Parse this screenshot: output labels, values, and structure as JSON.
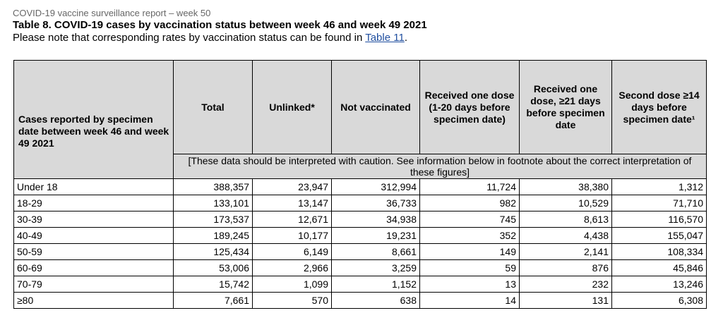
{
  "report_line": "COVID-19 vaccine surveillance report – week 50",
  "table_title": "Table 8. COVID-19 cases by vaccination status between week 46 and week 49 2021",
  "note": {
    "before": "Please note that corresponding rates by vaccination status can be found in ",
    "link": "Table 11",
    "after": "."
  },
  "headers": {
    "rowhead": "Cases reported by specimen date between week 46 and week 49 2021",
    "total": "Total",
    "unlinked": "Unlinked*",
    "not_vaccinated": "Not vaccinated",
    "one_dose_1_20": "Received one dose (1-20 days before specimen date)",
    "one_dose_21": "Received one dose, ≥21 days before specimen date",
    "second_dose": "Second dose ≥14 days before specimen date¹"
  },
  "caution": "[These data should be interpreted with caution. See information below in footnote about the correct interpretation of these figures]",
  "rows": [
    {
      "age": "Under 18",
      "total": "388,357",
      "unlinked": "23,947",
      "not_vaccinated": "312,994",
      "one_dose_1_20": "11,724",
      "one_dose_21": "38,380",
      "second_dose": "1,312"
    },
    {
      "age": "18-29",
      "total": "133,101",
      "unlinked": "13,147",
      "not_vaccinated": "36,733",
      "one_dose_1_20": "982",
      "one_dose_21": "10,529",
      "second_dose": "71,710"
    },
    {
      "age": "30-39",
      "total": "173,537",
      "unlinked": "12,671",
      "not_vaccinated": "34,938",
      "one_dose_1_20": "745",
      "one_dose_21": "8,613",
      "second_dose": "116,570"
    },
    {
      "age": "40-49",
      "total": "189,245",
      "unlinked": "10,177",
      "not_vaccinated": "19,231",
      "one_dose_1_20": "352",
      "one_dose_21": "4,438",
      "second_dose": "155,047"
    },
    {
      "age": "50-59",
      "total": "125,434",
      "unlinked": "6,149",
      "not_vaccinated": "8,661",
      "one_dose_1_20": "149",
      "one_dose_21": "2,141",
      "second_dose": "108,334"
    },
    {
      "age": "60-69",
      "total": "53,006",
      "unlinked": "2,966",
      "not_vaccinated": "3,259",
      "one_dose_1_20": "59",
      "one_dose_21": "876",
      "second_dose": "45,846"
    },
    {
      "age": "70-79",
      "total": "15,742",
      "unlinked": "1,099",
      "not_vaccinated": "1,152",
      "one_dose_1_20": "13",
      "one_dose_21": "232",
      "second_dose": "13,246"
    },
    {
      "age": "≥80",
      "total": "7,661",
      "unlinked": "570",
      "not_vaccinated": "638",
      "one_dose_1_20": "14",
      "one_dose_21": "131",
      "second_dose": "6,308"
    }
  ]
}
